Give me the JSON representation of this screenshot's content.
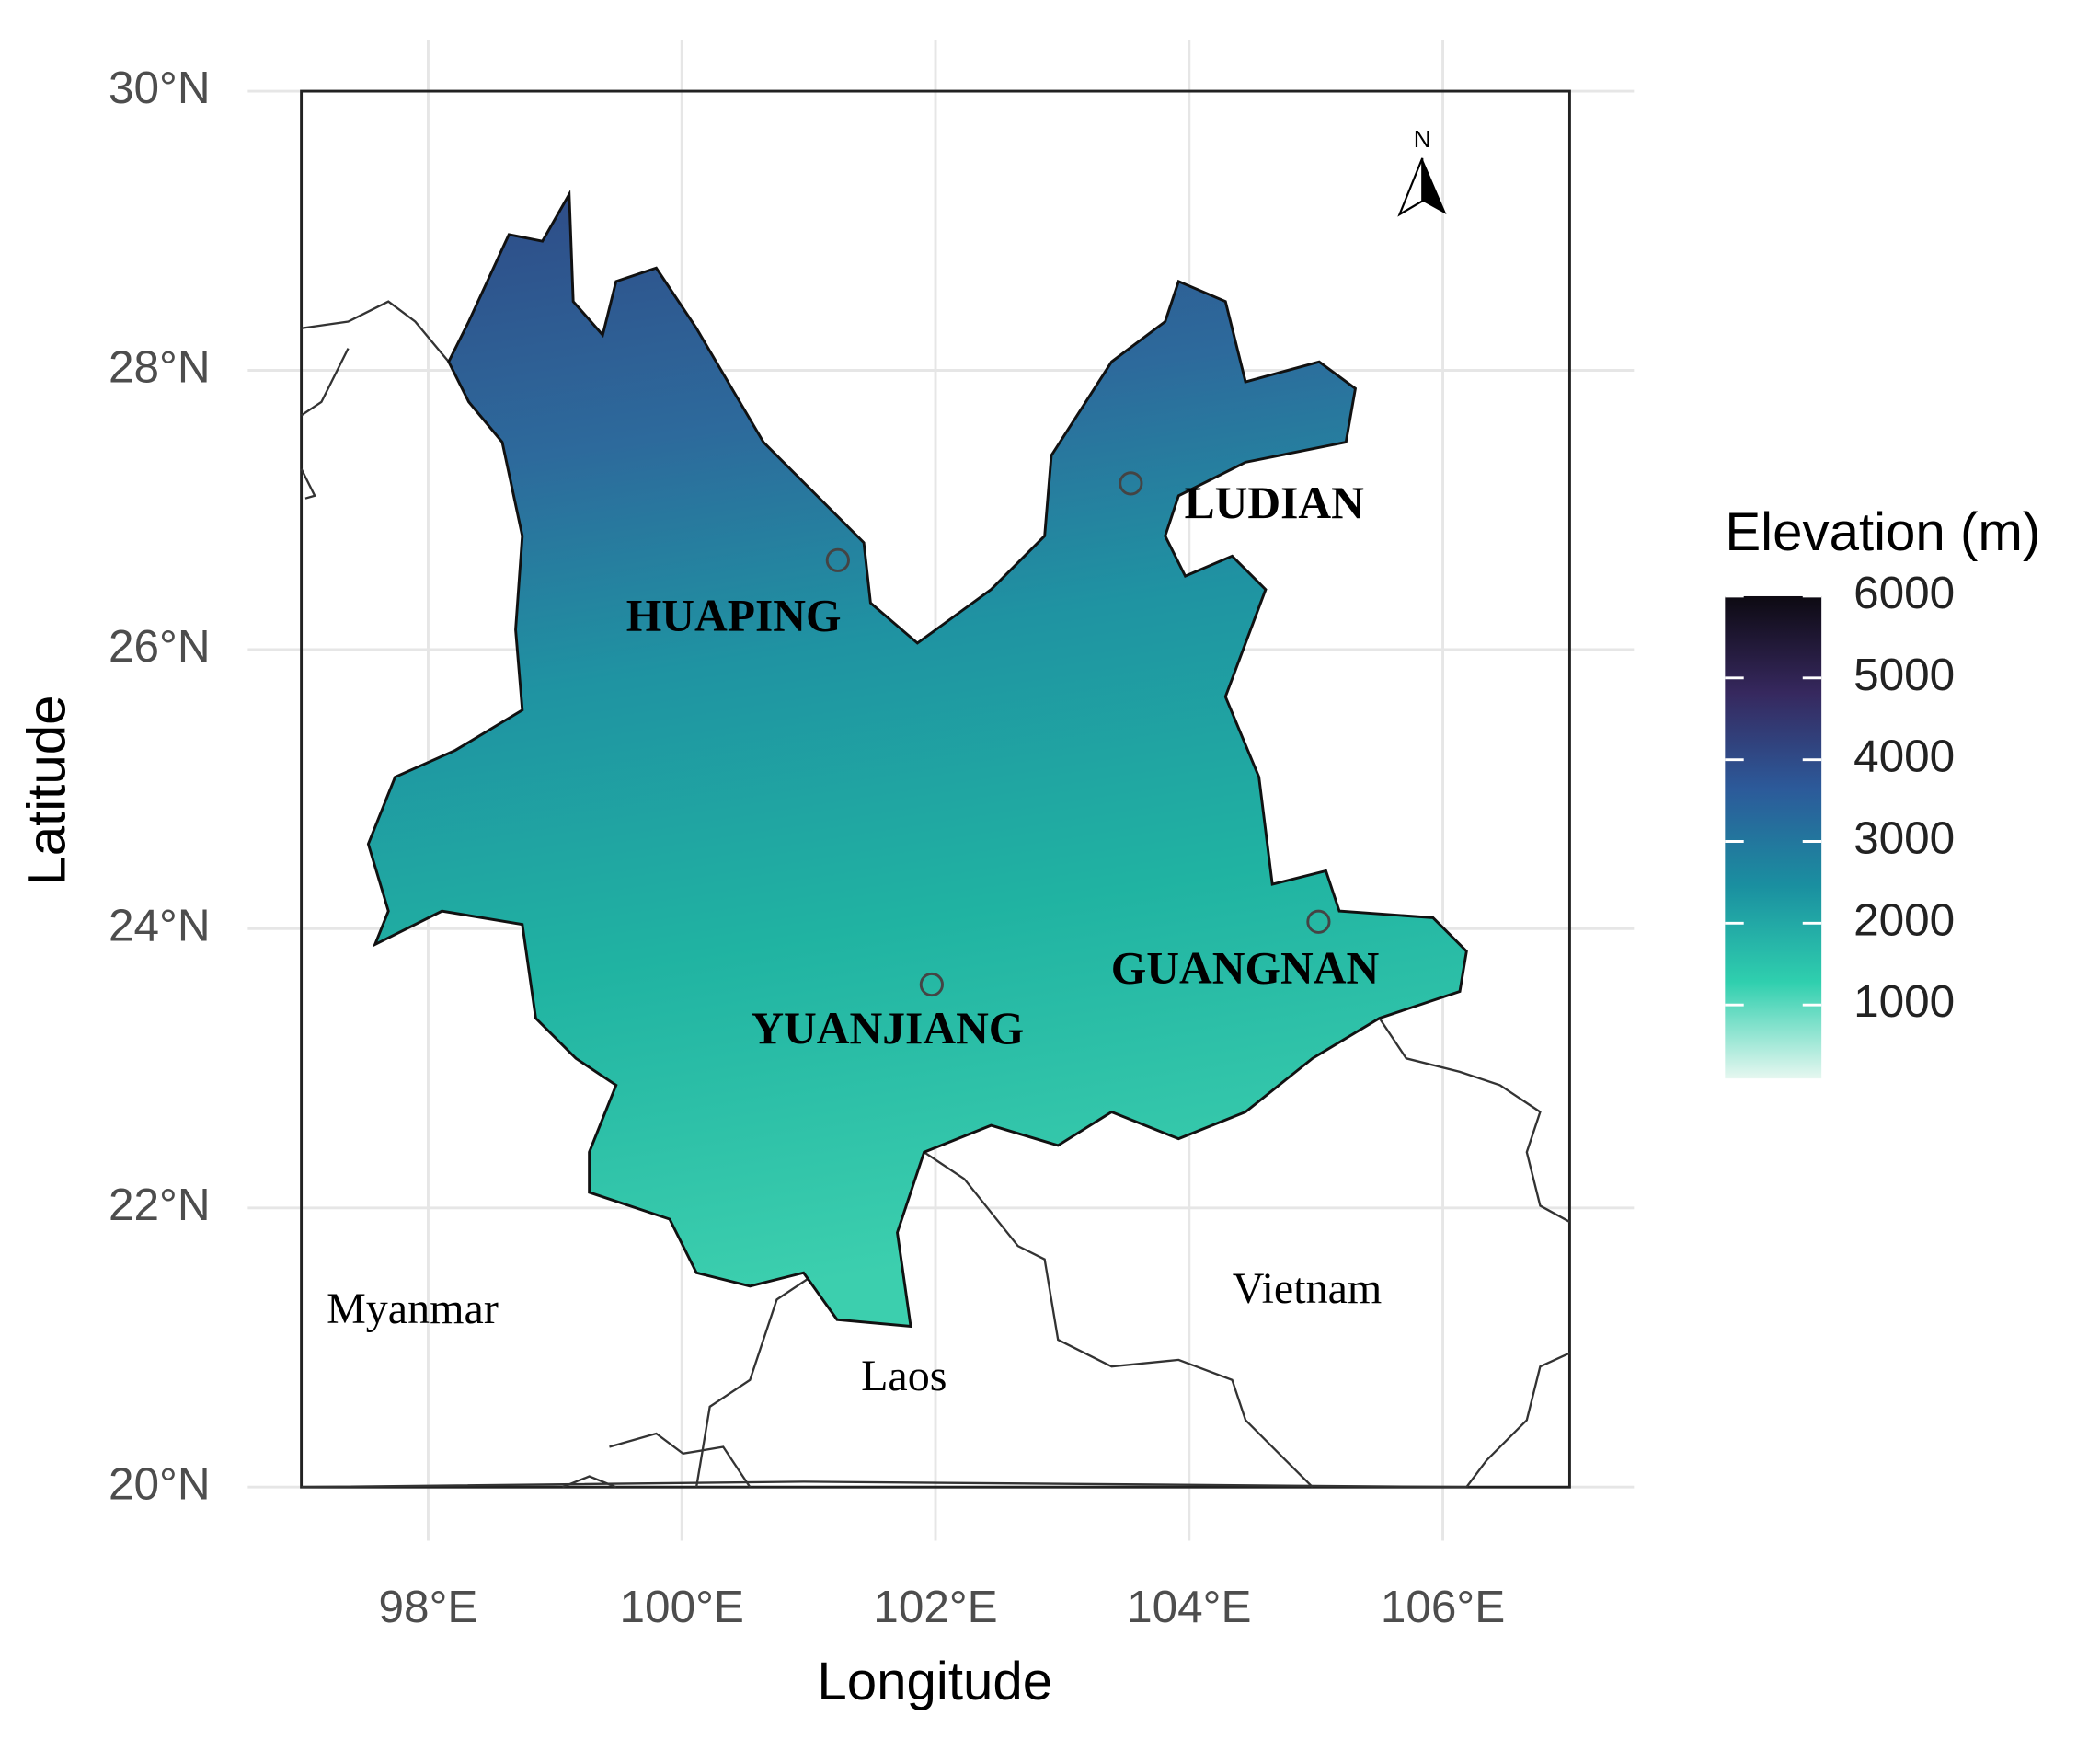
{
  "map": {
    "x_label": "Longitude",
    "y_label": "Latitude",
    "xlim": [
      97,
      107
    ],
    "ylim": [
      20,
      30
    ],
    "xticks": [
      {
        "value": 98,
        "label": "98°E"
      },
      {
        "value": 100,
        "label": "100°E"
      },
      {
        "value": 102,
        "label": "102°E"
      },
      {
        "value": 104,
        "label": "104°E"
      },
      {
        "value": 106,
        "label": "106°E"
      }
    ],
    "yticks": [
      {
        "value": 20,
        "label": "20°N"
      },
      {
        "value": 22,
        "label": "22°N"
      },
      {
        "value": 24,
        "label": "24°N"
      },
      {
        "value": 26,
        "label": "26°N"
      },
      {
        "value": 28,
        "label": "28°N"
      },
      {
        "value": 30,
        "label": "30°N"
      }
    ],
    "grid": true,
    "sites": [
      {
        "name": "HUAPING",
        "lon": 101.23,
        "lat": 26.64
      },
      {
        "name": "LUDIAN",
        "lon": 103.54,
        "lat": 27.19
      },
      {
        "name": "GUANGNAN",
        "lon": 105.02,
        "lat": 24.05
      },
      {
        "name": "YUANJIANG",
        "lon": 101.97,
        "lat": 23.6
      }
    ],
    "countries": [
      "Myanmar",
      "Laos",
      "Vietnam"
    ],
    "north_label": "N",
    "legend": {
      "title": "Elevation (m)",
      "range": [
        100,
        6000
      ],
      "ticks": [
        1000,
        2000,
        3000,
        4000,
        5000,
        6000
      ],
      "colors": [
        "#e6f7f0",
        "#2fcfae",
        "#1a8fa0",
        "#2c5a9a",
        "#36285e",
        "#0d0a12"
      ]
    }
  }
}
